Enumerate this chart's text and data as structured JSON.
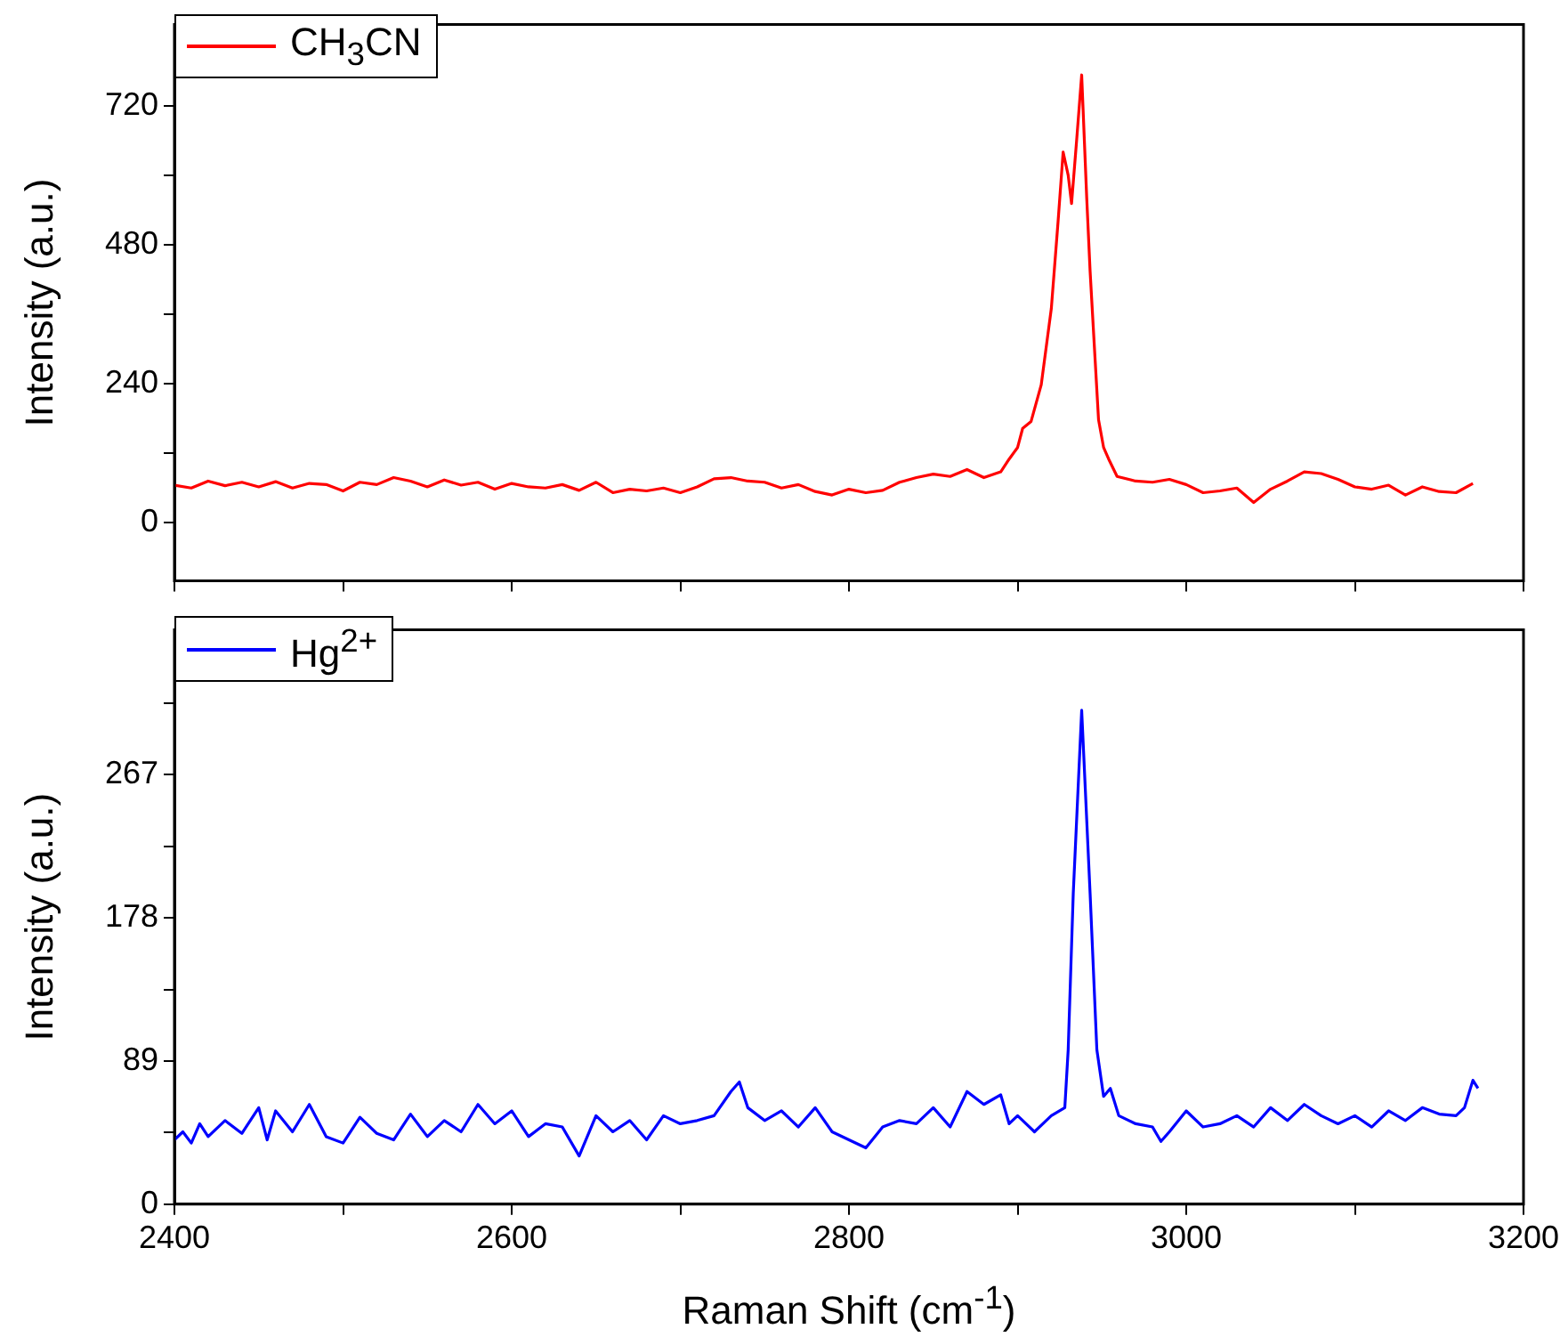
{
  "chart_data": [
    {
      "type": "line",
      "ylabel": "Intensity (a.u.)",
      "xlim": [
        2400,
        3200
      ],
      "ylim": [
        -100,
        860
      ],
      "legend": "top left",
      "grid": false,
      "tick_labels": "y",
      "xticks": [
        2400,
        {
          "value": 2500,
          "label": null
        },
        2600,
        {
          "value": 2700,
          "label": null
        },
        2800,
        {
          "value": 2900,
          "label": null
        },
        3000,
        {
          "value": 3100,
          "label": null
        },
        3200
      ],
      "yticks": [
        0,
        {
          "value": 120,
          "label": null
        },
        240,
        {
          "value": 360,
          "label": null
        },
        480,
        {
          "value": 600,
          "label": null
        },
        720
      ],
      "series": [
        {
          "name": "CH$_{3}$CN",
          "color": "#ff0000",
          "x": [
            2400,
            2410,
            2420,
            2430,
            2440,
            2450,
            2460,
            2470,
            2480,
            2490,
            2500,
            2510,
            2520,
            2530,
            2540,
            2550,
            2560,
            2570,
            2580,
            2590,
            2600,
            2610,
            2620,
            2630,
            2640,
            2650,
            2660,
            2670,
            2680,
            2690,
            2700,
            2710,
            2720,
            2730,
            2740,
            2750,
            2760,
            2770,
            2780,
            2790,
            2800,
            2810,
            2820,
            2830,
            2840,
            2850,
            2860,
            2870,
            2880,
            2890,
            2895,
            2900,
            2903,
            2908,
            2914,
            2920,
            2924,
            2927,
            2930,
            2932,
            2935,
            2938,
            2941,
            2943,
            2946,
            2948,
            2951,
            2954,
            2959,
            2970,
            2980,
            2990,
            3000,
            3010,
            3020,
            3030,
            3040,
            3050,
            3060,
            3070,
            3080,
            3090,
            3100,
            3110,
            3120,
            3130,
            3140,
            3150,
            3160,
            3170
          ],
          "values": [
            65,
            60,
            72,
            64,
            70,
            62,
            71,
            60,
            68,
            66,
            55,
            70,
            66,
            78,
            72,
            62,
            74,
            65,
            70,
            58,
            68,
            62,
            60,
            66,
            56,
            70,
            52,
            58,
            55,
            60,
            52,
            62,
            76,
            78,
            72,
            70,
            60,
            66,
            54,
            48,
            58,
            52,
            56,
            70,
            78,
            84,
            80,
            92,
            78,
            88,
            110,
            130,
            163,
            175,
            238,
            370,
            520,
            640,
            600,
            551,
            660,
            773,
            560,
            434,
            280,
            178,
            130,
            110,
            80,
            72,
            70,
            75,
            66,
            52,
            55,
            60,
            35,
            58,
            72,
            88,
            85,
            75,
            62,
            58,
            65,
            48,
            62,
            54,
            52,
            68
          ]
        }
      ]
    },
    {
      "type": "line",
      "xlabel": "Raman Shift (cm$^{-1}$)",
      "ylabel": "Intensity (a.u.)",
      "xlim": [
        2400,
        3200
      ],
      "ylim": [
        0,
        357
      ],
      "legend": "top left",
      "grid": false,
      "xticks": [
        2400,
        {
          "value": 2500,
          "label": null
        },
        2600,
        {
          "value": 2700,
          "label": null
        },
        2800,
        {
          "value": 2900,
          "label": null
        },
        3000,
        {
          "value": 3100,
          "label": null
        },
        3200
      ],
      "yticks": [
        0,
        {
          "value": 44.5,
          "label": null
        },
        89,
        {
          "value": 133.5,
          "label": null
        },
        178,
        {
          "value": 222.5,
          "label": null
        },
        267,
        {
          "value": 311.5,
          "label": null
        }
      ],
      "series": [
        {
          "name": "Hg$^{2+}$",
          "color": "#0000ff",
          "x": [
            2400,
            2405,
            2410,
            2415,
            2420,
            2430,
            2440,
            2450,
            2455,
            2460,
            2470,
            2480,
            2490,
            2500,
            2510,
            2520,
            2530,
            2540,
            2550,
            2560,
            2570,
            2580,
            2590,
            2600,
            2610,
            2620,
            2630,
            2640,
            2650,
            2660,
            2670,
            2680,
            2690,
            2700,
            2710,
            2720,
            2730,
            2735,
            2740,
            2750,
            2760,
            2770,
            2780,
            2790,
            2800,
            2810,
            2820,
            2830,
            2840,
            2850,
            2860,
            2870,
            2880,
            2890,
            2895,
            2900,
            2910,
            2920,
            2928,
            2930,
            2933,
            2938,
            2943,
            2947,
            2951,
            2955,
            2960,
            2970,
            2980,
            2985,
            2990,
            3000,
            3010,
            3020,
            3030,
            3040,
            3050,
            3060,
            3070,
            3080,
            3090,
            3100,
            3110,
            3120,
            3130,
            3140,
            3150,
            3160,
            3165,
            3170,
            3173
          ],
          "values": [
            40,
            45,
            38,
            50,
            42,
            52,
            44,
            60,
            40,
            58,
            45,
            62,
            42,
            38,
            54,
            44,
            40,
            56,
            42,
            52,
            45,
            62,
            50,
            58,
            42,
            50,
            48,
            30,
            55,
            45,
            52,
            40,
            55,
            50,
            52,
            55,
            70,
            76,
            60,
            52,
            58,
            48,
            60,
            45,
            40,
            35,
            48,
            52,
            50,
            60,
            48,
            70,
            62,
            68,
            50,
            55,
            45,
            55,
            60,
            96,
            193,
            307,
            193,
            96,
            67,
            72,
            55,
            50,
            48,
            39,
            45,
            58,
            48,
            50,
            55,
            48,
            60,
            52,
            62,
            55,
            50,
            55,
            48,
            58,
            52,
            60,
            56,
            55,
            60,
            77,
            72
          ]
        }
      ]
    }
  ]
}
